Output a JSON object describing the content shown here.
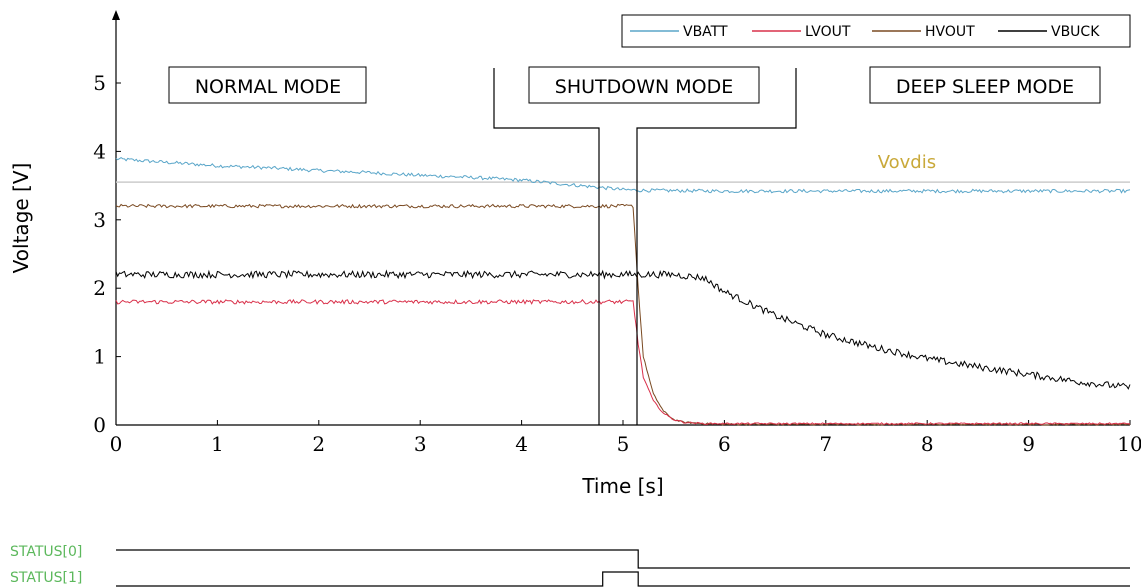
{
  "chart_data": {
    "type": "line",
    "xlabel": "Time [s]",
    "ylabel": "Voltage [V]",
    "xlim": [
      0,
      10
    ],
    "ylim": [
      0,
      6
    ],
    "xticks": [
      0,
      1,
      2,
      3,
      4,
      5,
      6,
      7,
      8,
      9,
      10
    ],
    "yticks": [
      0,
      1,
      2,
      3,
      4,
      5
    ],
    "legend_position": "top-right",
    "grid": false,
    "series": [
      {
        "name": "VBATT",
        "color": "#5aa6c9",
        "x": [
          0,
          0.5,
          1,
          1.5,
          2,
          2.5,
          3,
          3.5,
          4,
          4.5,
          4.8,
          5.0,
          5.2,
          6,
          7,
          8,
          9,
          10
        ],
        "y": [
          3.89,
          3.84,
          3.79,
          3.76,
          3.72,
          3.69,
          3.65,
          3.62,
          3.58,
          3.51,
          3.47,
          3.44,
          3.43,
          3.42,
          3.42,
          3.42,
          3.42,
          3.42
        ]
      },
      {
        "name": "LVOUT",
        "color": "#d9304a",
        "x": [
          0,
          1,
          2,
          3,
          4,
          4.8,
          5.1,
          5.15,
          5.2,
          5.3,
          5.4,
          5.5,
          5.6,
          5.8,
          6,
          7,
          8,
          9,
          10
        ],
        "y": [
          1.8,
          1.8,
          1.8,
          1.8,
          1.8,
          1.8,
          1.8,
          1.2,
          0.7,
          0.35,
          0.17,
          0.08,
          0.04,
          0.02,
          0.02,
          0.02,
          0.02,
          0.02,
          0.02
        ]
      },
      {
        "name": "HVOUT",
        "color": "#7a4a22",
        "x": [
          0,
          1,
          2,
          3,
          4,
          4.8,
          5.1,
          5.15,
          5.2,
          5.3,
          5.4,
          5.5,
          5.6,
          5.8,
          6,
          7,
          8,
          9,
          10
        ],
        "y": [
          3.2,
          3.2,
          3.2,
          3.2,
          3.2,
          3.2,
          3.2,
          2.0,
          1.0,
          0.45,
          0.2,
          0.08,
          0.04,
          0.02,
          0.01,
          0.01,
          0.01,
          0.01,
          0.01
        ]
      },
      {
        "name": "VBUCK",
        "color": "#000000",
        "x": [
          0,
          1,
          2,
          3,
          4,
          5,
          5.5,
          5.8,
          6.0,
          6.5,
          7,
          7.5,
          8,
          8.5,
          9,
          9.5,
          10
        ],
        "y": [
          2.2,
          2.2,
          2.2,
          2.2,
          2.2,
          2.2,
          2.2,
          2.15,
          1.95,
          1.6,
          1.32,
          1.13,
          0.97,
          0.85,
          0.74,
          0.63,
          0.55
        ]
      }
    ],
    "reference_line": {
      "label": "Vovdis",
      "value": 3.55,
      "color": "#c9a93a",
      "line_color": "#cccccc"
    },
    "annotations": {
      "normal": "NORMAL MODE",
      "shutdown": "SHUTDOWN MODE",
      "deep_sleep": "DEEP SLEEP MODE"
    },
    "status": {
      "color": "#5cb85c",
      "status0": {
        "label": "STATUS[0]",
        "levels": [
          1,
          0
        ],
        "switch_at": [
          5.15
        ]
      },
      "status1": {
        "label": "STATUS[1]",
        "levels": [
          0,
          1,
          0
        ],
        "switch_at": [
          4.8,
          5.15
        ]
      }
    }
  }
}
